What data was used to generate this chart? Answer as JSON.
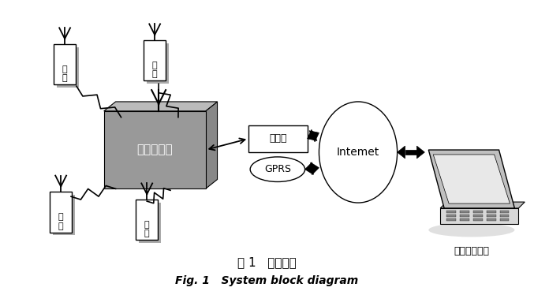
{
  "title_cn": "图 1   系统框图",
  "title_en": "Fig. 1   System block diagram",
  "bg_color": "#ffffff",
  "base_station_label": "便携式基站",
  "ethernet_label": "以太网",
  "gprs_label": "GPRS",
  "internet_label": "Intemet",
  "remote_label": "远程控制中心",
  "node_label": "节\n点",
  "node_color": "#cccccc",
  "base_color_front": "#aaaaaa",
  "base_color_side": "#888888",
  "base_color_top": "#bbbbbb"
}
